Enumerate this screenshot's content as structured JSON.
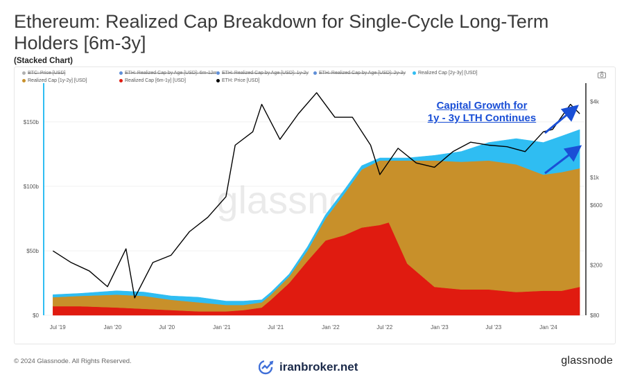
{
  "header": {
    "title": "Ethereum: Realized Cap Breakdown for Single-Cycle Long-Term Holders [6m-3y]",
    "subtitle": "(Stacked Chart)"
  },
  "legend": [
    {
      "label": "BTC: Price [USD]",
      "color": "#b0b0b0",
      "enabled": false
    },
    {
      "label": "ETH: Realized Cap by Age [USD]: 6m-12m",
      "color": "#5f8fd8",
      "enabled": false
    },
    {
      "label": "ETH: Realized Cap by Age [USD]: 1y-2y",
      "color": "#5f8fd8",
      "enabled": false
    },
    {
      "label": "ETH: Realized Cap by Age [USD]: 2y-3y",
      "color": "#5f8fd8",
      "enabled": false
    },
    {
      "label": "Realized Cap [2y-3y] [USD]",
      "color": "#2fbdf2",
      "enabled": true
    },
    {
      "label": "Realized Cap [1y-2y] [USD]",
      "color": "#c8902a",
      "enabled": true
    },
    {
      "label": "Realized Cap [6m-1y] [USD]",
      "color": "#e01b10",
      "enabled": true
    },
    {
      "label": "ETH: Price [USD]",
      "color": "#000000",
      "enabled": true
    }
  ],
  "annotation": {
    "line1": "Capital Growth for",
    "line2": "1y - 3y LTH Continues",
    "color": "#1a4fd6"
  },
  "watermark": {
    "text": "glassnode",
    "brand": "iranbroker.net"
  },
  "footer": {
    "copyright": "© 2024 Glassnode. All Rights Reserved.",
    "logo": "glassnode"
  },
  "chart_data": {
    "type": "area",
    "title": "Ethereum: Realized Cap Breakdown for Single-Cycle Long-Term Holders [6m-3y]",
    "subtitle": "(Stacked Chart)",
    "stacked": true,
    "x_ticks": [
      "Jul '19",
      "Jan '20",
      "Jul '20",
      "Jan '21",
      "Jul '21",
      "Jan '22",
      "Jul '22",
      "Jan '23",
      "Jul '23",
      "Jan '24"
    ],
    "y_left": {
      "ticks": [
        "$0",
        "$50b",
        "$100b",
        "$150b"
      ],
      "values": [
        0,
        50,
        100,
        150
      ],
      "range": [
        0,
        180
      ]
    },
    "y_right": {
      "ticks": [
        "$80",
        "$200",
        "$600",
        "$1k",
        "$4k"
      ],
      "values": [
        80,
        200,
        600,
        1000,
        4000
      ],
      "scale": "log"
    },
    "x": [
      "2019-06",
      "2019-09",
      "2020-01",
      "2020-04",
      "2020-07",
      "2020-10",
      "2021-01",
      "2021-03",
      "2021-05",
      "2021-06",
      "2021-08",
      "2021-10",
      "2021-12",
      "2022-02",
      "2022-04",
      "2022-06",
      "2022-07",
      "2022-09",
      "2022-12",
      "2023-03",
      "2023-06",
      "2023-09",
      "2023-12",
      "2024-02",
      "2024-04"
    ],
    "series": [
      {
        "name": "Realized Cap [6m-1y] [USD]",
        "color": "#e01b10",
        "values": [
          7,
          7,
          6,
          5,
          4,
          3,
          3,
          4,
          6,
          12,
          25,
          42,
          58,
          62,
          68,
          70,
          72,
          40,
          22,
          20,
          20,
          18,
          19,
          19,
          22
        ]
      },
      {
        "name": "Realized Cap [1y-2y] [USD]",
        "color": "#c8902a",
        "values": [
          7,
          8,
          10,
          10,
          8,
          7,
          5,
          4,
          4,
          4,
          5,
          8,
          17,
          32,
          45,
          50,
          48,
          80,
          98,
          99,
          100,
          99,
          90,
          92,
          92
        ]
      },
      {
        "name": "Realized Cap [2y-3y] [USD]",
        "color": "#2fbdf2",
        "values": [
          2,
          2,
          3,
          3,
          3,
          4,
          3,
          3,
          2,
          2,
          2,
          3,
          3,
          3,
          3,
          2,
          2,
          2,
          4,
          8,
          14,
          20,
          25,
          28,
          30
        ]
      }
    ],
    "price_series": {
      "name": "ETH: Price [USD]",
      "color": "#000000",
      "x": [
        "2019-06",
        "2019-08",
        "2019-10",
        "2019-12",
        "2020-02",
        "2020-03",
        "2020-05",
        "2020-07",
        "2020-09",
        "2020-11",
        "2021-01",
        "2021-02",
        "2021-04",
        "2021-05",
        "2021-07",
        "2021-09",
        "2021-11",
        "2022-01",
        "2022-03",
        "2022-05",
        "2022-06",
        "2022-08",
        "2022-10",
        "2022-12",
        "2023-02",
        "2023-04",
        "2023-06",
        "2023-08",
        "2023-10",
        "2023-12",
        "2024-01",
        "2024-03",
        "2024-04"
      ],
      "values": [
        260,
        210,
        180,
        135,
        270,
        110,
        210,
        240,
        370,
        480,
        700,
        1800,
        2300,
        3800,
        2000,
        3200,
        4700,
        3000,
        3000,
        1800,
        1050,
        1700,
        1300,
        1200,
        1600,
        1900,
        1800,
        1750,
        1600,
        2300,
        2400,
        3800,
        3200
      ]
    }
  }
}
